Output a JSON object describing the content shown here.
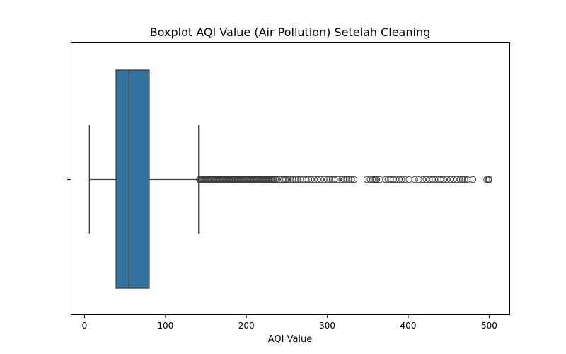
{
  "chart_data": {
    "type": "boxplot",
    "title": "Boxplot AQI Value (Air Pollution) Setelah Cleaning",
    "xlabel": "AQI Value",
    "xlim": [
      -17,
      525
    ],
    "xticks": [
      0,
      100,
      200,
      300,
      400,
      500
    ],
    "xtick_labels": [
      "0",
      "100",
      "200",
      "300",
      "400",
      "500"
    ],
    "box": {
      "whisker_low": 6,
      "q1": 39,
      "median": 55,
      "q3": 80,
      "whisker_high": 141
    },
    "outlier_dense_range": [
      142,
      235
    ],
    "outliers": [
      238,
      241,
      243,
      246,
      248,
      250,
      252,
      255,
      258,
      261,
      264,
      267,
      270,
      274,
      277,
      280,
      284,
      288,
      292,
      296,
      300,
      303,
      306,
      309,
      313,
      318,
      321,
      324,
      327,
      330,
      333,
      349,
      353,
      356,
      359,
      361,
      365,
      372,
      375,
      378,
      382,
      385,
      389,
      392,
      396,
      401,
      408,
      413,
      418,
      422,
      426,
      430,
      433,
      437,
      440,
      444,
      448,
      452,
      456,
      460,
      464,
      467,
      470,
      473,
      480,
      497,
      499,
      500
    ],
    "colors": {
      "box_fill": "#3274a1",
      "line": "#3d3d3d"
    },
    "grid": false,
    "legend": "none"
  }
}
